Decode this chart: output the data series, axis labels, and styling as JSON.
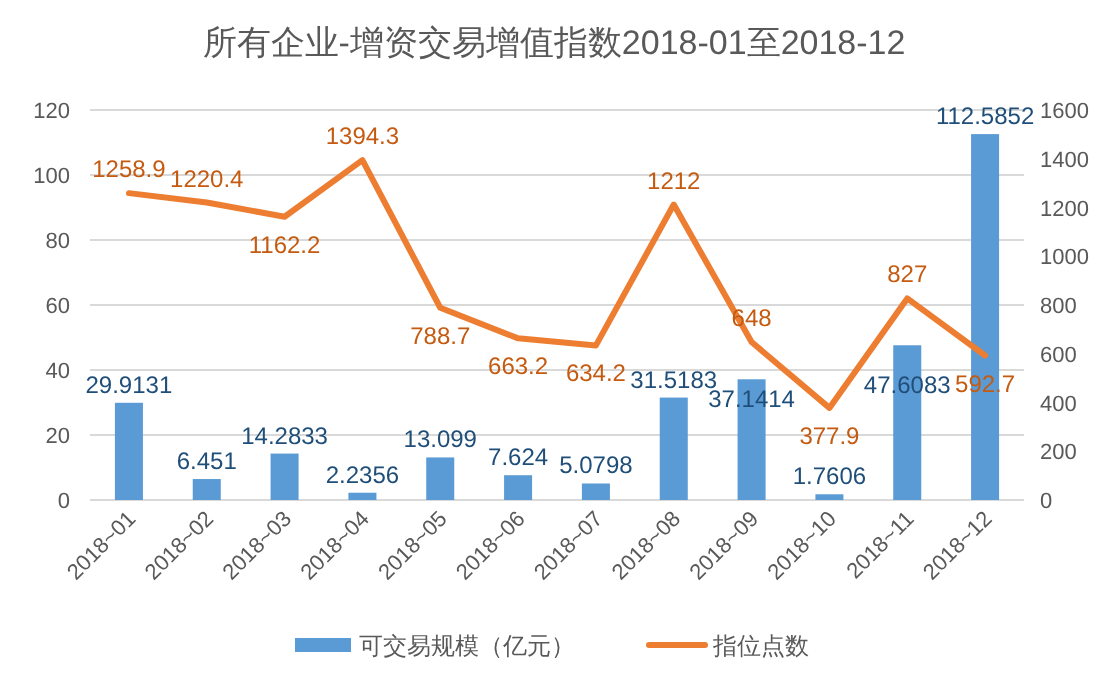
{
  "chart_data": {
    "type": "bar",
    "title": "所有企业-增资交易增值指数2018-01至2018-12",
    "categories": [
      "2018~01",
      "2018~02",
      "2018~03",
      "2018~04",
      "2018~05",
      "2018~06",
      "2018~07",
      "2018~08",
      "2018~09",
      "2018~10",
      "2018~11",
      "2018~12"
    ],
    "series": [
      {
        "name": "可交易规模（亿元）",
        "color": "#5b9bd5",
        "values": [
          29.9131,
          6.451,
          14.2833,
          2.2356,
          13.099,
          7.624,
          5.0798,
          31.5183,
          37.1414,
          1.7606,
          47.6083,
          112.5852
        ]
      },
      {
        "name": "指位点数",
        "type": "line",
        "axis": "y2",
        "color": "#ed7d31",
        "values": [
          1258.9,
          1220.4,
          1162.2,
          1394.3,
          788.7,
          663.2,
          634.2,
          1212,
          648,
          377.9,
          827,
          592.7
        ]
      }
    ],
    "ylim": [
      0,
      120
    ],
    "yticks": [
      0,
      20,
      40,
      60,
      80,
      100,
      120
    ],
    "y2lim": [
      0,
      1600
    ],
    "y2ticks": [
      0,
      200,
      400,
      600,
      800,
      1000,
      1200,
      1400,
      1600
    ],
    "grid": "y",
    "legend": "bottom",
    "data_labels": true,
    "marker": "none",
    "line_style": "solid"
  }
}
